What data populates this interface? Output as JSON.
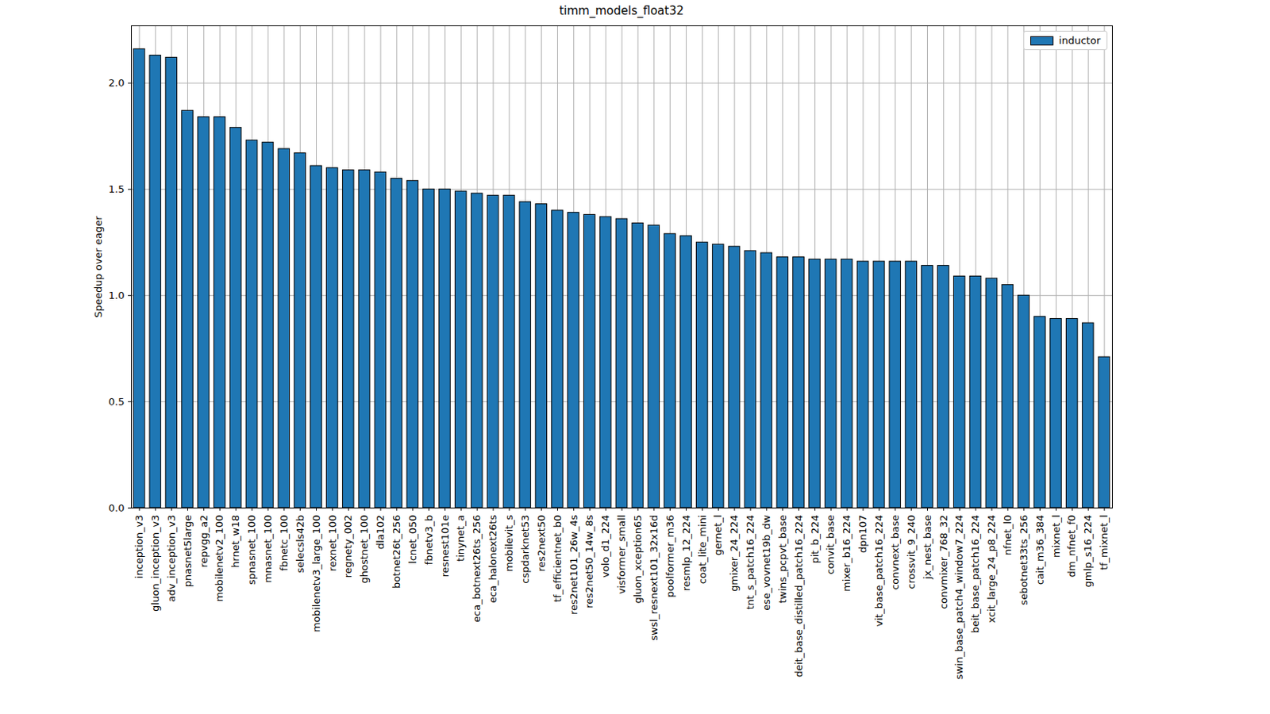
{
  "chart_data": {
    "type": "bar",
    "title": "timm_models_float32",
    "y_label": "Speedup over eager",
    "categories": [
      "inception_v3",
      "gluon_inception_v3",
      "adv_inception_v3",
      "pnasnet5large",
      "repvgg_a2",
      "mobilenetv2_100",
      "hrnet_w18",
      "spnasnet_100",
      "mnasnet_100",
      "fbnetc_100",
      "selecsls42b",
      "mobilenetv3_large_100",
      "rexnet_100",
      "regnety_002",
      "ghostnet_100",
      "dla102",
      "botnet26t_256",
      "lcnet_050",
      "fbnetv3_b",
      "resnest101e",
      "tinynet_a",
      "eca_botnext26ts_256",
      "eca_halonext26ts",
      "mobilevit_s",
      "cspdarknet53",
      "res2next50",
      "tf_efficientnet_b0",
      "res2net101_26w_4s",
      "res2net50_14w_8s",
      "volo_d1_224",
      "visformer_small",
      "gluon_xception65",
      "swsl_resnext101_32x16d",
      "poolformer_m36",
      "resmlp_12_224",
      "coat_lite_mini",
      "gernet_l",
      "gmixer_24_224",
      "tnt_s_patch16_224",
      "ese_vovnet19b_dw",
      "twins_pcpvt_base",
      "deit_base_distilled_patch16_224",
      "pit_b_224",
      "convit_base",
      "mixer_b16_224",
      "dpn107",
      "vit_base_patch16_224",
      "convnext_base",
      "crossvit_9_240",
      "jx_nest_base",
      "convmixer_768_32",
      "swin_base_patch4_window7_224",
      "beit_base_patch16_224",
      "xcit_large_24_p8_224",
      "nfnet_l0",
      "sebotnet33ts_256",
      "cait_m36_384",
      "mixnet_l",
      "dm_nfnet_f0",
      "gmlp_s16_224",
      "tf_mixnet_l"
    ],
    "series": [
      {
        "name": "inductor",
        "color": "#1f77b4",
        "values": [
          2.16,
          2.13,
          2.12,
          1.87,
          1.84,
          1.84,
          1.79,
          1.73,
          1.72,
          1.69,
          1.67,
          1.61,
          1.6,
          1.59,
          1.59,
          1.58,
          1.55,
          1.54,
          1.5,
          1.5,
          1.49,
          1.48,
          1.47,
          1.47,
          1.44,
          1.43,
          1.4,
          1.39,
          1.38,
          1.37,
          1.36,
          1.34,
          1.33,
          1.29,
          1.28,
          1.25,
          1.24,
          1.23,
          1.21,
          1.2,
          1.18,
          1.18,
          1.17,
          1.17,
          1.17,
          1.16,
          1.16,
          1.16,
          1.16,
          1.14,
          1.14,
          1.09,
          1.09,
          1.08,
          1.05,
          1.0,
          0.9,
          0.89,
          0.89,
          0.87,
          0.71
        ]
      }
    ],
    "ylim": [
      0,
      2.27
    ],
    "yticks": [
      {
        "value": 0,
        "label": "0.0"
      },
      {
        "value": 0.5,
        "label": "0.5"
      },
      {
        "value": 1,
        "label": "1.0"
      },
      {
        "value": 1.5,
        "label": "1.5"
      },
      {
        "value": 2,
        "label": "2.0"
      }
    ],
    "grid": true,
    "legend": "upper right"
  }
}
